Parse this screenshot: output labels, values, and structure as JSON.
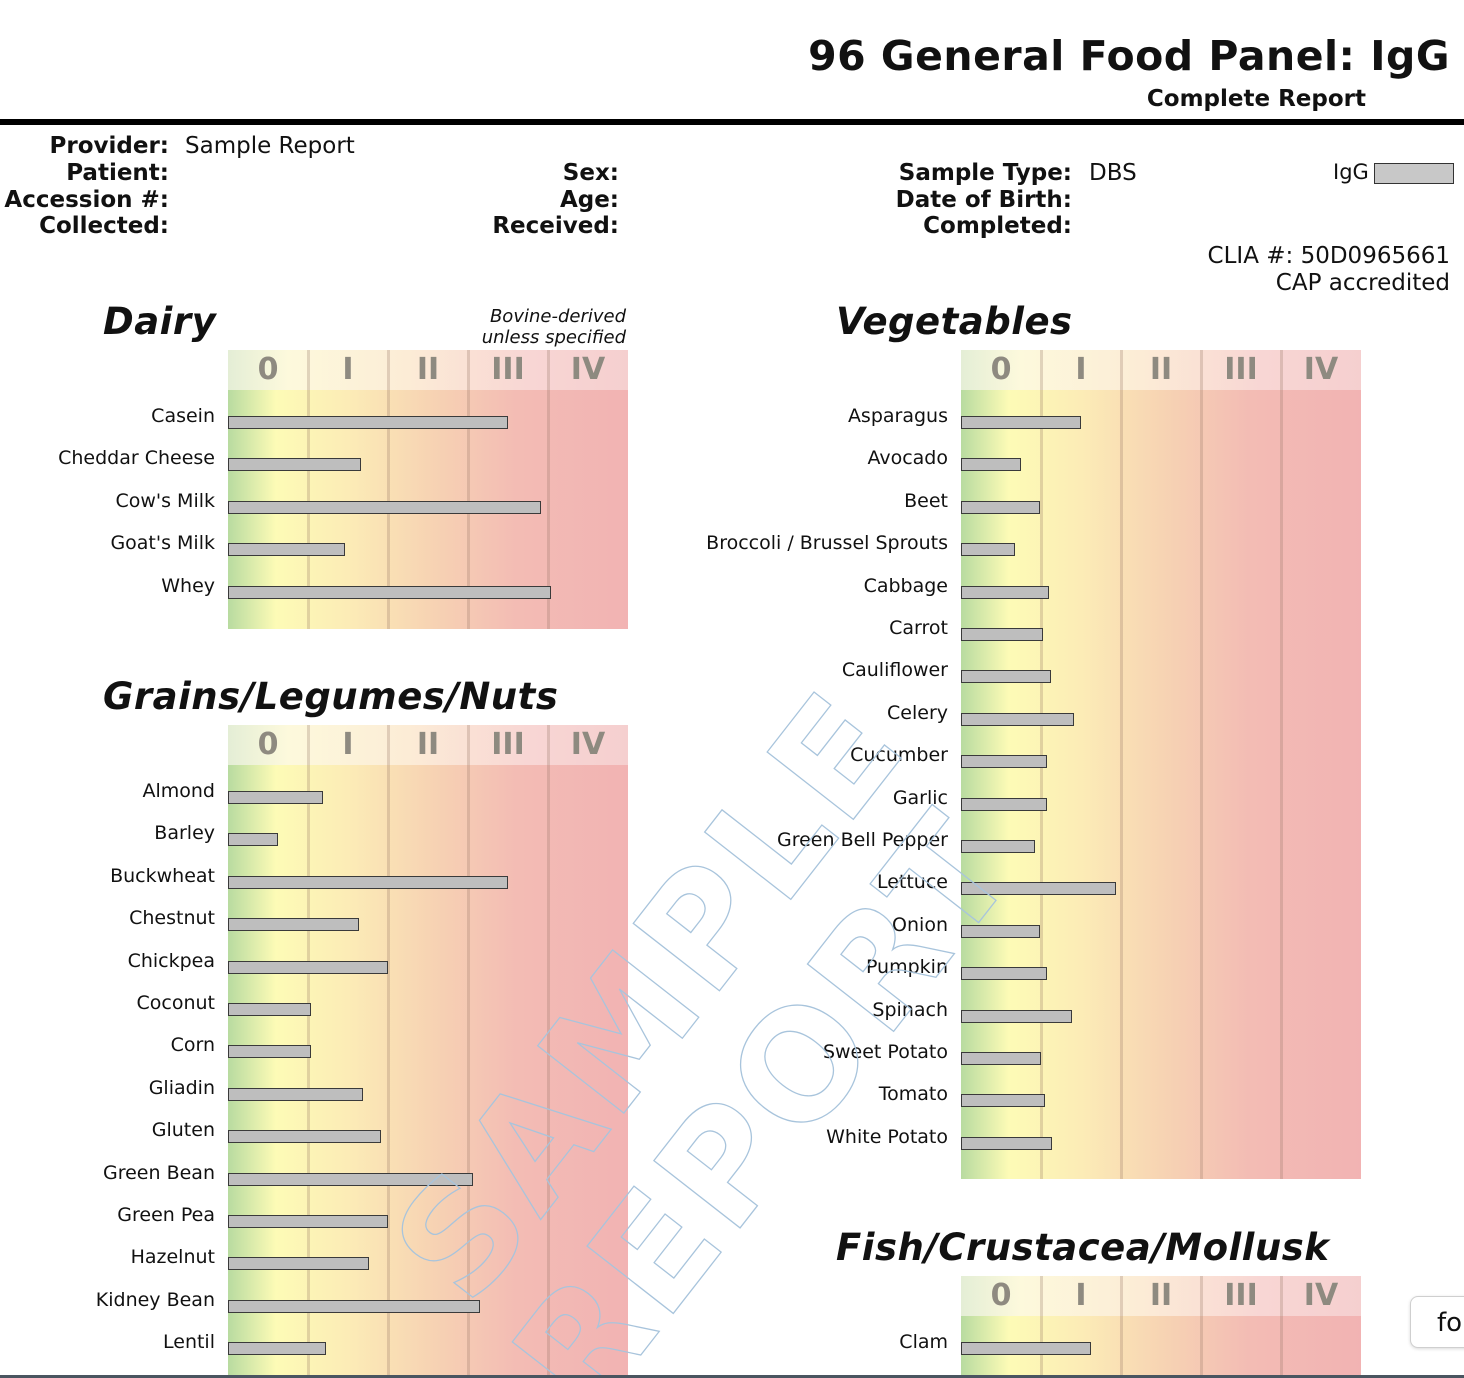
{
  "header": {
    "title": "96 General Food Panel: IgG",
    "subtitle": "Complete Report"
  },
  "info": {
    "provider_label": "Provider:",
    "provider_value": "Sample Report",
    "patient_label": "Patient:",
    "accession_label": "Accession #:",
    "collected_label": "Collected:",
    "sex_label": "Sex:",
    "age_label": "Age:",
    "received_label": "Received:",
    "sample_type_label": "Sample Type:",
    "sample_type_value": "DBS",
    "dob_label": "Date of Birth:",
    "completed_label": "Completed:",
    "legend_label": "IgG",
    "clia": "CLIA #: 50D0965661",
    "cap": "CAP accredited"
  },
  "watermark": {
    "line1": "SAMPLE",
    "line2": "REPORT"
  },
  "widget": {
    "label": "fo"
  },
  "colors": {
    "bar_fill": "#bebebe",
    "bar_border": "#3a3a3a"
  },
  "chart_data": [
    {
      "type": "bar",
      "orientation": "horizontal",
      "title": "Dairy",
      "note": "Bovine-derived unless specified",
      "class_labels": [
        "0",
        "I",
        "II",
        "III",
        "IV"
      ],
      "xlim": [
        0,
        5
      ],
      "categories": [
        "Casein",
        "Cheddar Cheese",
        "Cow's Milk",
        "Goat's Milk",
        "Whey"
      ],
      "values": [
        3.5,
        1.66,
        3.91,
        1.46,
        4.04
      ]
    },
    {
      "type": "bar",
      "orientation": "horizontal",
      "title": "Grains/Legumes/Nuts",
      "class_labels": [
        "0",
        "I",
        "II",
        "III",
        "IV"
      ],
      "xlim": [
        0,
        5
      ],
      "categories": [
        "Almond",
        "Barley",
        "Buckwheat",
        "Chestnut",
        "Chickpea",
        "Coconut",
        "Corn",
        "Gliadin",
        "Gluten",
        "Green Bean",
        "Green Pea",
        "Hazelnut",
        "Kidney Bean",
        "Lentil"
      ],
      "values": [
        1.19,
        0.63,
        3.5,
        1.64,
        2.0,
        1.04,
        1.04,
        1.69,
        1.91,
        3.06,
        2.0,
        1.76,
        3.15,
        1.23
      ]
    },
    {
      "type": "bar",
      "orientation": "horizontal",
      "title": "Vegetables",
      "class_labels": [
        "0",
        "I",
        "II",
        "III",
        "IV"
      ],
      "xlim": [
        0,
        5
      ],
      "categories": [
        "Asparagus",
        "Avocado",
        "Beet",
        "Broccoli / Brussel Sprouts",
        "Cabbage",
        "Carrot",
        "Cauliflower",
        "Celery",
        "Cucumber",
        "Garlic",
        "Green Bell Pepper",
        "Lettuce",
        "Onion",
        "Pumpkin",
        "Spinach",
        "Sweet Potato",
        "Tomato",
        "White Potato"
      ],
      "values": [
        1.5,
        0.75,
        0.99,
        0.68,
        1.1,
        1.03,
        1.13,
        1.41,
        1.08,
        1.08,
        0.93,
        1.94,
        0.99,
        1.08,
        1.39,
        1.0,
        1.05,
        1.14
      ]
    },
    {
      "type": "bar",
      "orientation": "horizontal",
      "title": "Fish/Crustacea/Mollusk",
      "class_labels": [
        "0",
        "I",
        "II",
        "III",
        "IV"
      ],
      "xlim": [
        0,
        5
      ],
      "categories": [
        "Clam"
      ],
      "values": [
        1.63
      ]
    }
  ]
}
